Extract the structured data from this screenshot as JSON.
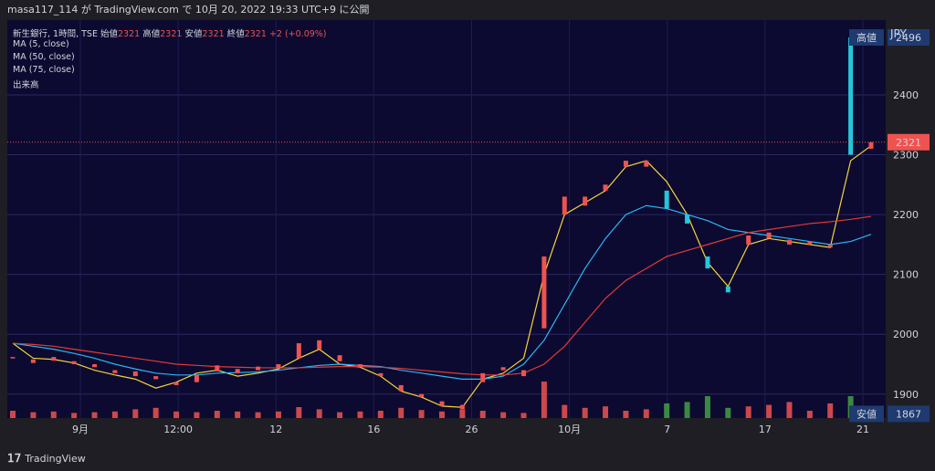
{
  "header": {
    "caption": "masa117_114 が TradingView.com で 10月 20, 2022 19:33 UTC+9 に公開"
  },
  "legend": {
    "symbol": "新生銀行, 1時間, TSE",
    "open_label": "始値",
    "open": "2321",
    "high_label": "高値",
    "high": "2321",
    "low_label": "安値",
    "low": "2321",
    "close_label": "終値",
    "close": "2321",
    "change": "+2 (+0.09%)",
    "ma5": "MA (5, close)",
    "ma50": "MA (50, close)",
    "ma75": "MA (75, close)",
    "volume": "出来高"
  },
  "price_axis": {
    "currency": "JPY",
    "high_tag_label": "高値",
    "high_tag_value": "2496",
    "low_tag_label": "安値",
    "low_tag_value": "1867",
    "last_price": "2321"
  },
  "footer": {
    "brand": "TradingView"
  },
  "colors": {
    "background": "#0c0a30",
    "candle_up": "#ef5350",
    "candle_down": "#26c6da",
    "ma5": "#f5d33b",
    "ma50": "#29b6f6",
    "ma75": "#e53935",
    "volume_up": "#ef5350",
    "volume_down": "#43a047",
    "tag_bg": "#1e3a70",
    "last_price_bg": "#ef5350"
  },
  "chart_data": {
    "type": "candlestick",
    "y_ticks": [
      1900,
      2000,
      2100,
      2200,
      2300,
      2400
    ],
    "ylim": [
      1860,
      2525
    ],
    "x_ticks": [
      "9月",
      "12:00",
      "12",
      "16",
      "26",
      "10月",
      "7",
      "17",
      "21"
    ],
    "series": [
      {
        "name": "MA (5, close)",
        "values": [
          1985,
          1960,
          1958,
          1952,
          1940,
          1932,
          1925,
          1910,
          1920,
          1935,
          1940,
          1930,
          1935,
          1942,
          1960,
          1975,
          1950,
          1945,
          1930,
          1905,
          1895,
          1880,
          1878,
          1925,
          1935,
          1960,
          2100,
          2200,
          2220,
          2240,
          2280,
          2290,
          2255,
          2200,
          2120,
          2080,
          2150,
          2160,
          2155,
          2150,
          2145,
          2290,
          2315
        ]
      },
      {
        "name": "MA (50, close)",
        "values": [
          1985,
          1980,
          1975,
          1968,
          1960,
          1950,
          1942,
          1935,
          1932,
          1932,
          1935,
          1936,
          1937,
          1940,
          1944,
          1948,
          1950,
          1948,
          1946,
          1940,
          1935,
          1930,
          1925,
          1925,
          1930,
          1950,
          1990,
          2050,
          2110,
          2160,
          2200,
          2215,
          2210,
          2200,
          2190,
          2175,
          2170,
          2165,
          2160,
          2155,
          2150,
          2155,
          2167
        ]
      },
      {
        "name": "MA (75, close)",
        "values": [
          1985,
          1983,
          1980,
          1975,
          1970,
          1965,
          1960,
          1955,
          1950,
          1948,
          1946,
          1945,
          1944,
          1944,
          1944,
          1945,
          1946,
          1946,
          1945,
          1943,
          1940,
          1937,
          1934,
          1932,
          1932,
          1935,
          1950,
          1980,
          2020,
          2060,
          2090,
          2110,
          2130,
          2140,
          2150,
          2160,
          2170,
          2175,
          2180,
          2185,
          2188,
          2192,
          2197
        ]
      }
    ],
    "candles": [
      [
        1960,
        1962
      ],
      [
        1952,
        1958
      ],
      [
        1956,
        1962
      ],
      [
        1950,
        1955
      ],
      [
        1945,
        1950
      ],
      [
        1935,
        1940
      ],
      [
        1930,
        1938
      ],
      [
        1925,
        1930
      ],
      [
        1915,
        1920
      ],
      [
        1920,
        1932
      ],
      [
        1938,
        1948
      ],
      [
        1935,
        1942
      ],
      [
        1940,
        1946
      ],
      [
        1943,
        1950
      ],
      [
        1960,
        1985
      ],
      [
        1975,
        1990
      ],
      [
        1955,
        1965
      ],
      [
        1945,
        1950
      ],
      [
        1930,
        1935
      ],
      [
        1905,
        1915
      ],
      [
        1895,
        1900
      ],
      [
        1880,
        1888
      ],
      [
        1875,
        1882
      ],
      [
        1920,
        1935
      ],
      [
        1940,
        1945
      ],
      [
        1930,
        1940
      ],
      [
        2010,
        2130
      ],
      [
        2200,
        2230
      ],
      [
        2215,
        2230
      ],
      [
        2240,
        2250
      ],
      [
        2280,
        2290
      ],
      [
        2280,
        2290
      ],
      [
        2240,
        2210
      ],
      [
        2200,
        2185
      ],
      [
        2130,
        2110
      ],
      [
        2080,
        2070
      ],
      [
        2150,
        2165
      ],
      [
        2160,
        2170
      ],
      [
        2150,
        2158
      ],
      [
        2150,
        2155
      ],
      [
        2145,
        2150
      ],
      [
        2496,
        2300
      ],
      [
        2310,
        2321
      ]
    ],
    "volume": [
      10,
      8,
      9,
      7,
      8,
      9,
      12,
      14,
      9,
      8,
      10,
      9,
      8,
      9,
      15,
      12,
      8,
      9,
      10,
      14,
      11,
      9,
      12,
      10,
      8,
      7,
      50,
      18,
      14,
      16,
      10,
      12,
      20,
      22,
      30,
      14,
      16,
      18,
      22,
      10,
      20,
      30,
      12
    ]
  }
}
